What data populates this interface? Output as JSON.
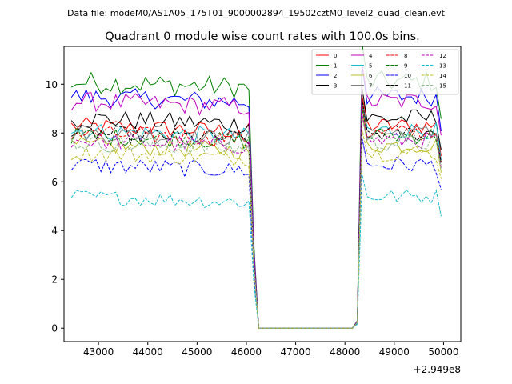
{
  "chart_data": {
    "type": "line",
    "suptitle": "Data file: modeM0/AS1A05_175T01_9000002894_19502cztM0_level2_quad_clean.evt",
    "title": "Quadrant 0 module wise count rates with 100.0s bins.",
    "xlabel": "",
    "ylabel": "",
    "x_offset_label": "+2.949e8",
    "xlim": [
      42300,
      50350
    ],
    "ylim": [
      -0.55,
      11.55
    ],
    "x_ticks": [
      43000,
      44000,
      45000,
      46000,
      47000,
      48000,
      49000,
      50000
    ],
    "x_tick_labels": [
      "43000",
      "44000",
      "45000",
      "46000",
      "47000",
      "48000",
      "49000",
      "50000"
    ],
    "y_ticks": [
      0,
      2,
      4,
      6,
      8,
      10
    ],
    "y_tick_labels": [
      "0",
      "2",
      "4",
      "6",
      "8",
      "10"
    ],
    "legend_position": "upper right",
    "legend_columns": 4,
    "series": [
      {
        "name": "0",
        "color": "#ff0000",
        "style": "solid",
        "level": 8.3,
        "amp": 0.35
      },
      {
        "name": "1",
        "color": "#008000",
        "style": "solid",
        "level": 10.1,
        "amp": 0.45
      },
      {
        "name": "2",
        "color": "#0000ff",
        "style": "solid",
        "level": 9.5,
        "amp": 0.4
      },
      {
        "name": "3",
        "color": "#000000",
        "style": "solid",
        "level": 8.6,
        "amp": 0.4
      },
      {
        "name": "4",
        "color": "#bf00bf",
        "style": "solid",
        "level": 9.3,
        "amp": 0.4
      },
      {
        "name": "5",
        "color": "#17becf",
        "style": "solid",
        "level": 8.1,
        "amp": 0.35
      },
      {
        "name": "6",
        "color": "#bcbd22",
        "style": "solid",
        "level": 7.5,
        "amp": 0.35
      },
      {
        "name": "7",
        "color": "#7f7f7f",
        "style": "solid",
        "level": 8.0,
        "amp": 0.35
      },
      {
        "name": "8",
        "color": "#ff0000",
        "style": "dashed",
        "level": 8.0,
        "amp": 0.35
      },
      {
        "name": "9",
        "color": "#008000",
        "style": "dashed",
        "level": 7.9,
        "amp": 0.35
      },
      {
        "name": "10",
        "color": "#0000ff",
        "style": "dashed",
        "level": 6.7,
        "amp": 0.35
      },
      {
        "name": "11",
        "color": "#000000",
        "style": "dashed",
        "level": 8.0,
        "amp": 0.35
      },
      {
        "name": "12",
        "color": "#bf00bf",
        "style": "dashed",
        "level": 7.7,
        "amp": 0.35
      },
      {
        "name": "13",
        "color": "#17becf",
        "style": "dashed",
        "level": 5.4,
        "amp": 0.3
      },
      {
        "name": "14",
        "color": "#bcbd22",
        "style": "dashed",
        "level": 7.2,
        "amp": 0.35
      },
      {
        "name": "15",
        "color": "#8fbc8f",
        "style": "dashed",
        "level": 7.6,
        "amp": 0.35
      }
    ],
    "time_profile": {
      "first_bin_x": 42450,
      "bin_width": 100,
      "gap_start_x": 46250,
      "gap_end_x": 48150,
      "last_bin_x": 49950
    }
  }
}
